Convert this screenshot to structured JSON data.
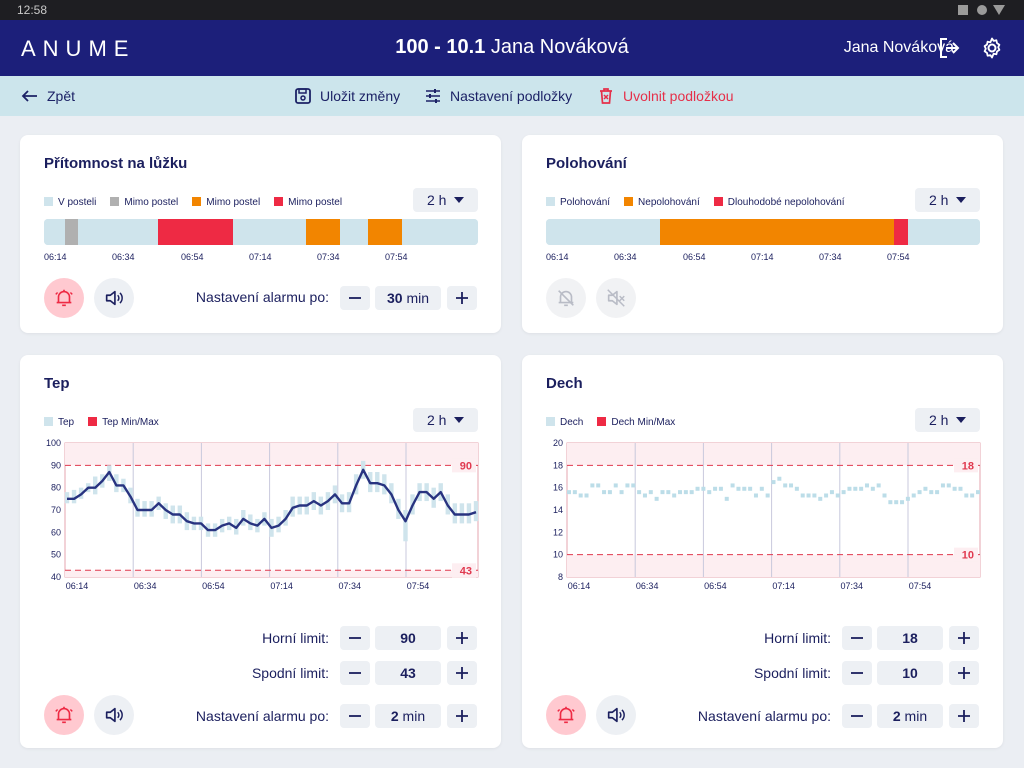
{
  "statusbar": {
    "time": "12:58"
  },
  "header": {
    "logo": "ANUME",
    "title_bold": "100 - 10.1",
    "title_rest": " Jana Nováková",
    "user": "Jana Nováková"
  },
  "toolbar": {
    "back": "Zpět",
    "save": "Uložit změny",
    "settings": "Nastavení podložky",
    "release": "Uvolnit podložkou"
  },
  "colors": {
    "navy": "#1c1f7a",
    "light_blue": "#cfe4ec",
    "orange": "#f28500",
    "red": "#ee2a44",
    "gray": "#b0b0b0"
  },
  "time_ticks": [
    "06:14",
    "06:34",
    "06:54",
    "07:14",
    "07:34",
    "07:54"
  ],
  "presence": {
    "title": "Přítomnost na lůžku",
    "range": "2 h",
    "legend": [
      {
        "label": "V posteli",
        "color": "#cfe4ec"
      },
      {
        "label": "Mimo postel",
        "color": "#b0b0b0"
      },
      {
        "label": "Mimo postel",
        "color": "#f28500"
      },
      {
        "label": "Mimo postel",
        "color": "#ee2a44"
      }
    ],
    "timeline": [
      {
        "state": "V posteli",
        "color": "#cfe4ec",
        "start_min": 0,
        "end_min": 6
      },
      {
        "state": "Mimo postel",
        "color": "#b0b0b0",
        "start_min": 6,
        "end_min": 10
      },
      {
        "state": "V posteli",
        "color": "#cfe4ec",
        "start_min": 10,
        "end_min": 33
      },
      {
        "state": "Mimo postel",
        "color": "#ee2a44",
        "start_min": 33,
        "end_min": 55
      },
      {
        "state": "V posteli",
        "color": "#cfe4ec",
        "start_min": 55,
        "end_min": 76
      },
      {
        "state": "Mimo postel",
        "color": "#f28500",
        "start_min": 76,
        "end_min": 86
      },
      {
        "state": "V posteli",
        "color": "#cfe4ec",
        "start_min": 86,
        "end_min": 94
      },
      {
        "state": "Mimo postel",
        "color": "#f28500",
        "start_min": 94,
        "end_min": 104
      },
      {
        "state": "V posteli",
        "color": "#cfe4ec",
        "start_min": 104,
        "end_min": 126
      }
    ],
    "alarm_label": "Nastavení alarmu po:",
    "alarm_value": "30",
    "alarm_unit": " min"
  },
  "positioning": {
    "title": "Polohování",
    "range": "2 h",
    "legend": [
      {
        "label": "Polohování",
        "color": "#cfe4ec"
      },
      {
        "label": "Nepolohování",
        "color": "#f28500"
      },
      {
        "label": "Dlouhodobé nepolohování",
        "color": "#ee2a44"
      }
    ],
    "timeline": [
      {
        "state": "Polohování",
        "color": "#cfe4ec",
        "start_min": 0,
        "end_min": 33
      },
      {
        "state": "Nepolohování",
        "color": "#f28500",
        "start_min": 33,
        "end_min": 101
      },
      {
        "state": "Dlouhodobé nepolohování",
        "color": "#ee2a44",
        "start_min": 101,
        "end_min": 105
      },
      {
        "state": "Polohování",
        "color": "#cfe4ec",
        "start_min": 105,
        "end_min": 126
      }
    ]
  },
  "heart": {
    "title": "Tep",
    "range": "2 h",
    "legend": [
      {
        "label": "Tep",
        "color": "#cfe4ec"
      },
      {
        "label": "Tep Min/Max",
        "color": "#ee2a44"
      }
    ],
    "upper_label": "Horní limit:",
    "upper_value": "90",
    "lower_label": "Spodní limit:",
    "lower_value": "43",
    "alarm_label": "Nastavení alarmu po:",
    "alarm_value": "2",
    "alarm_unit": " min"
  },
  "breath": {
    "title": "Dech",
    "range": "2 h",
    "legend": [
      {
        "label": "Dech",
        "color": "#cfe4ec"
      },
      {
        "label": "Dech Min/Max",
        "color": "#ee2a44"
      }
    ],
    "upper_label": "Horní limit:",
    "upper_value": "18",
    "lower_label": "Spodní limit:",
    "lower_value": "10",
    "alarm_label": "Nastavení alarmu po:",
    "alarm_value": "2",
    "alarm_unit": " min"
  },
  "chart_data": [
    {
      "type": "line",
      "x_ticks": [
        "06:14",
        "06:34",
        "06:54",
        "07:14",
        "07:34",
        "07:54"
      ],
      "yticks": [
        "100",
        "90",
        "80",
        "70",
        "60",
        "50",
        "40"
      ],
      "ylim": [
        40,
        100
      ],
      "limit_upper": 90,
      "limit_lower": 43,
      "upper_label": "90",
      "lower_label": "43",
      "series": [
        {
          "name": "Tep",
          "values": [
            75,
            75,
            77,
            80,
            80,
            83,
            87,
            81,
            81,
            76,
            70,
            70,
            70,
            73,
            70,
            68,
            68,
            65,
            64,
            64,
            61,
            61,
            63,
            64,
            62,
            66,
            64,
            63,
            66,
            62,
            63,
            66,
            71,
            72,
            72,
            74,
            72,
            74,
            77,
            73,
            73,
            81,
            88,
            82,
            82,
            81,
            77,
            70,
            65,
            72,
            78,
            78,
            75,
            78,
            72,
            68,
            68,
            68,
            69
          ],
          "band": [
            [
              73,
              78
            ],
            [
              73,
              79
            ],
            [
              75,
              80
            ],
            [
              78,
              82
            ],
            [
              77,
              85
            ],
            [
              80,
              86
            ],
            [
              83,
              90
            ],
            [
              78,
              86
            ],
            [
              78,
              84
            ],
            [
              73,
              80
            ],
            [
              67,
              75
            ],
            [
              67,
              74
            ],
            [
              67,
              74
            ],
            [
              70,
              76
            ],
            [
              66,
              73
            ],
            [
              64,
              72
            ],
            [
              64,
              72
            ],
            [
              61,
              69
            ],
            [
              61,
              67
            ],
            [
              61,
              67
            ],
            [
              58,
              64
            ],
            [
              58,
              64
            ],
            [
              60,
              66
            ],
            [
              61,
              67
            ],
            [
              59,
              66
            ],
            [
              63,
              70
            ],
            [
              61,
              68
            ],
            [
              60,
              66
            ],
            [
              63,
              69
            ],
            [
              58,
              66
            ],
            [
              60,
              67
            ],
            [
              63,
              70
            ],
            [
              67,
              76
            ],
            [
              68,
              76
            ],
            [
              68,
              76
            ],
            [
              70,
              78
            ],
            [
              68,
              76
            ],
            [
              70,
              78
            ],
            [
              73,
              81
            ],
            [
              69,
              77
            ],
            [
              69,
              78
            ],
            [
              77,
              86
            ],
            [
              84,
              92
            ],
            [
              78,
              87
            ],
            [
              78,
              87
            ],
            [
              77,
              86
            ],
            [
              73,
              82
            ],
            [
              66,
              75
            ],
            [
              56,
              70
            ],
            [
              68,
              77
            ],
            [
              74,
              82
            ],
            [
              74,
              82
            ],
            [
              71,
              80
            ],
            [
              74,
              82
            ],
            [
              68,
              77
            ],
            [
              64,
              73
            ],
            [
              64,
              73
            ],
            [
              64,
              73
            ],
            [
              65,
              74
            ]
          ]
        }
      ]
    },
    {
      "type": "scatter",
      "x_ticks": [
        "06:14",
        "06:34",
        "06:54",
        "07:14",
        "07:34",
        "07:54"
      ],
      "yticks": [
        "20",
        "18",
        "16",
        "14",
        "12",
        "10",
        "8"
      ],
      "ylim": [
        8,
        20
      ],
      "limit_upper": 18,
      "limit_lower": 10,
      "upper_label": "18",
      "lower_label": "10",
      "series": [
        {
          "name": "Dech",
          "values": [
            15.6,
            15.6,
            15.3,
            15.3,
            16.2,
            16.2,
            15.6,
            15.6,
            16.2,
            15.6,
            16.2,
            16.2,
            15.6,
            15.3,
            15.6,
            15.0,
            15.6,
            15.6,
            15.3,
            15.6,
            15.6,
            15.6,
            15.9,
            15.9,
            15.6,
            15.9,
            15.9,
            15.0,
            16.2,
            15.9,
            15.9,
            15.9,
            15.3,
            15.9,
            15.3,
            16.5,
            16.8,
            16.2,
            16.2,
            15.9,
            15.3,
            15.3,
            15.3,
            15.0,
            15.3,
            15.6,
            15.3,
            15.6,
            15.9,
            15.9,
            15.9,
            16.2,
            15.9,
            16.2,
            15.3,
            14.7,
            14.7,
            14.7,
            15.0,
            15.3,
            15.6,
            15.9,
            15.6,
            15.6,
            16.2,
            16.2,
            15.9,
            15.9,
            15.3,
            15.3,
            15.6
          ]
        }
      ]
    }
  ]
}
